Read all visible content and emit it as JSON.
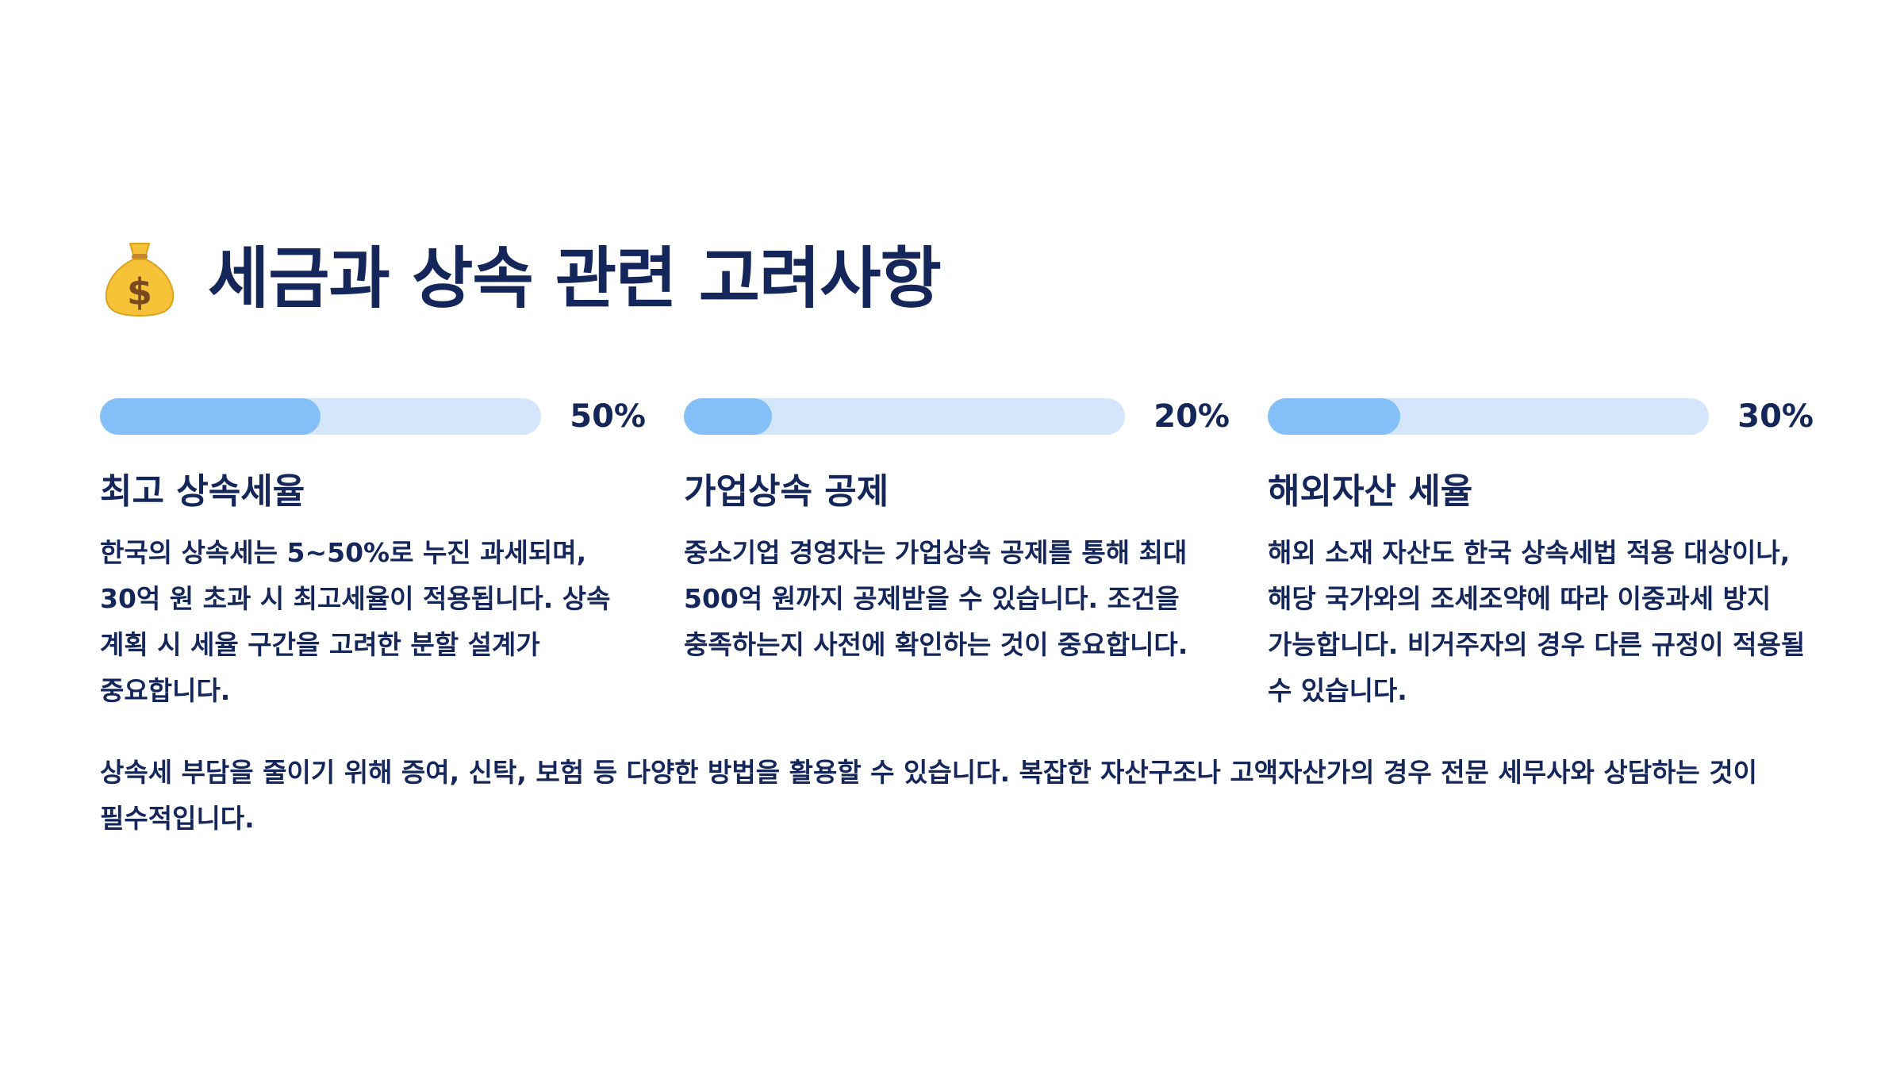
{
  "header": {
    "icon": "money-bag-icon",
    "title": "세금과 상속 관련 고려사항"
  },
  "colors": {
    "text": "#14265a",
    "bar_track": "#d4e6fb",
    "bar_fill": "#85bff7",
    "icon_bag": "#f6c338",
    "icon_dollar": "#7a4a1e"
  },
  "columns": [
    {
      "percent_value": 50,
      "percent_label": "50%",
      "title": "최고 상속세율",
      "body": "한국의 상속세는 5~50%로 누진 과세되며, 30억 원 초과 시 최고세율이 적용됩니다. 상속 계획 시 세율 구간을 고려한 분할 설계가 중요합니다."
    },
    {
      "percent_value": 20,
      "percent_label": "20%",
      "title": "가업상속 공제",
      "body": "중소기업 경영자는 가업상속 공제를 통해 최대 500억 원까지 공제받을 수 있습니다. 조건을 충족하는지 사전에 확인하는 것이 중요합니다."
    },
    {
      "percent_value": 30,
      "percent_label": "30%",
      "title": "해외자산 세율",
      "body": "해외 소재 자산도 한국 상속세법 적용 대상이나, 해당 국가와의 조세조약에 따라 이중과세 방지 가능합니다. 비거주자의 경우 다른 규정이 적용될 수 있습니다."
    }
  ],
  "footer": {
    "text": "상속세 부담을 줄이기 위해 증여, 신탁, 보험 등 다양한 방법을 활용할 수 있습니다. 복잡한 자산구조나 고액자산가의 경우 전문 세무사와 상담하는 것이 필수적입니다."
  }
}
